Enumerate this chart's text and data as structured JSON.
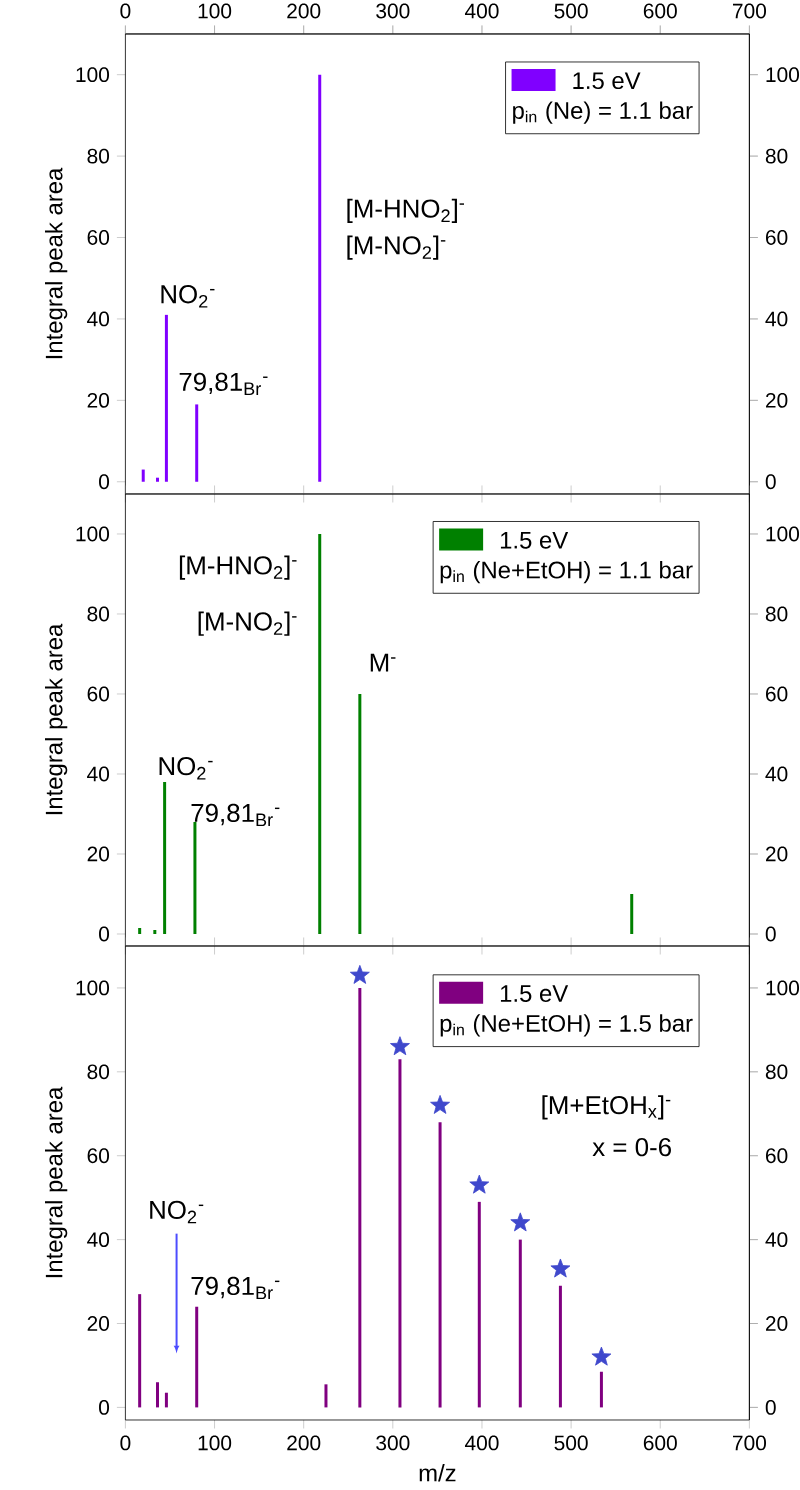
{
  "chart_data": [
    {
      "type": "bar",
      "ylabel": "Integral peak area",
      "xlim": [
        0,
        700
      ],
      "xticks": [
        0,
        100,
        200,
        300,
        400,
        500,
        600,
        700
      ],
      "x2lim": [
        0,
        700
      ],
      "x2ticks": [
        0,
        100,
        200,
        300,
        400,
        500,
        600,
        700
      ],
      "ylim": [
        -3,
        110
      ],
      "yticks": [
        0,
        20,
        40,
        60,
        80,
        100
      ],
      "y2lim": [
        -3,
        110
      ],
      "y2ticks": [
        0,
        20,
        40,
        60,
        80,
        100
      ],
      "tick_labels": "y",
      "legend": "top right",
      "legend_title": "p$_{in}$ (Ne) = 1.1 bar",
      "series": [
        {
          "name": "1.5 eV",
          "color": "#8000ff",
          "x": [
            20,
            36,
            46,
            80,
            218
          ],
          "values": [
            3,
            1,
            41,
            19,
            100
          ]
        }
      ],
      "annotations": [
        "NO$_{2}$$^{-}$",
        "79,81$_{Br}$$^{-}$",
        "[M-HNO$_{2}$]$^{-}$",
        "[M-NO$_{2}$]$^{-}$"
      ]
    },
    {
      "type": "bar",
      "ylabel": "Integral peak area",
      "xlim": [
        0,
        700
      ],
      "xticks": [
        0,
        100,
        200,
        300,
        400,
        500,
        600,
        700
      ],
      "ylim": [
        -3,
        110
      ],
      "yticks": [
        0,
        20,
        40,
        60,
        80,
        100
      ],
      "y2lim": [
        -3,
        110
      ],
      "y2ticks": [
        0,
        20,
        40,
        60,
        80,
        100
      ],
      "tick_labels": "y",
      "legend": "top right",
      "legend_title": "p$_{in}$ (Ne+EtOH) = 1.1 bar",
      "series": [
        {
          "name": "1.5 eV",
          "color": "#008000",
          "x": [
            16,
            33,
            44,
            78,
            218,
            263,
            568
          ],
          "values": [
            1.5,
            1,
            38,
            28,
            100,
            60,
            10
          ]
        }
      ],
      "annotations": [
        "[M-HNO$_{2}$]$^{-}$",
        "[M-NO$_{2}$]$^{-}$",
        "M$^{-}$",
        "NO$_{2}$$^{-}$",
        "79,81$_{Br}$$^{-}$"
      ]
    },
    {
      "type": "bar",
      "ylabel": "Integral peak area",
      "xlabel": "m/z",
      "xlim": [
        0,
        700
      ],
      "xticks": [
        0,
        100,
        200,
        300,
        400,
        500,
        600,
        700
      ],
      "ylim": [
        -3,
        110
      ],
      "yticks": [
        0,
        20,
        40,
        60,
        80,
        100
      ],
      "y2lim": [
        -3,
        110
      ],
      "y2ticks": [
        0,
        20,
        40,
        60,
        80,
        100
      ],
      "legend": "top right",
      "legend_title": "p$_{in}$ (Ne+EtOH) = 1.5 bar",
      "series": [
        {
          "name": "1.5 eV",
          "color": "#800080",
          "x": [
            16,
            36,
            46,
            80,
            225,
            263,
            308,
            353,
            397,
            443,
            488,
            534
          ],
          "values": [
            27,
            6,
            3.5,
            24,
            5.5,
            100,
            83,
            68,
            49,
            40,
            29,
            8.5
          ]
        },
        {
          "type": "scatter",
          "marker": "star",
          "color": "#3f48cc",
          "x": [
            263,
            308,
            353,
            397,
            443,
            488,
            534
          ],
          "values": [
            103,
            86,
            72,
            53,
            44,
            33,
            12
          ]
        }
      ],
      "annotations": [
        "NO$_{2}$$^{-}$",
        "79,81$_{Br}$$^{-}$",
        "[M+EtOH$_{x}$]$^{-}$",
        "x = 0-6"
      ]
    }
  ]
}
